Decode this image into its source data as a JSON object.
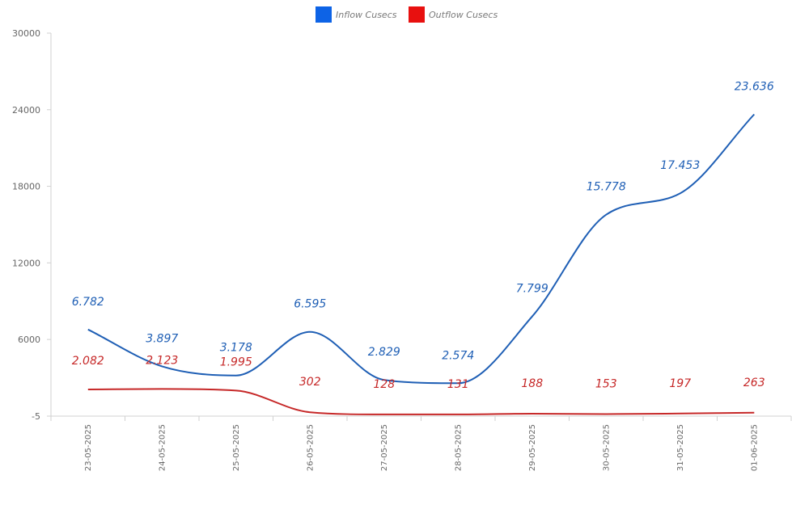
{
  "chart_data": {
    "type": "line",
    "title": "",
    "xlabel": "",
    "ylabel": "",
    "categories": [
      "23-05-2025",
      "24-05-2025",
      "25-05-2025",
      "26-05-2025",
      "27-05-2025",
      "28-05-2025",
      "29-05-2025",
      "30-05-2025",
      "31-05-2025",
      "01-06-2025"
    ],
    "series": [
      {
        "name": "Inflow Cusecs",
        "color": "#1f5fb5",
        "legend_color": "#0d63e6",
        "values": [
          6782,
          3897,
          3178,
          6595,
          2829,
          2574,
          7799,
          15778,
          17453,
          23636
        ],
        "labels": [
          "6.782",
          "3.897",
          "3.178",
          "6.595",
          "2.829",
          "2.574",
          "7.799",
          "15.778",
          "17.453",
          "23.636"
        ]
      },
      {
        "name": "Outflow Cusecs",
        "color": "#c62828",
        "legend_color": "#e8100f",
        "values": [
          2082,
          2123,
          1995,
          302,
          128,
          131,
          188,
          153,
          197,
          263
        ],
        "labels": [
          "2.082",
          "2.123",
          "1.995",
          "302",
          "128",
          "131",
          "188",
          "153",
          "197",
          "263"
        ]
      }
    ],
    "yticks": [
      -5,
      6000,
      12000,
      18000,
      24000,
      30000
    ],
    "ytick_labels": [
      "-5",
      "6000",
      "12000",
      "18000",
      "24000",
      "30000"
    ],
    "ylim": [
      -5,
      30000
    ],
    "grid": false,
    "legend_position": "top-center"
  }
}
